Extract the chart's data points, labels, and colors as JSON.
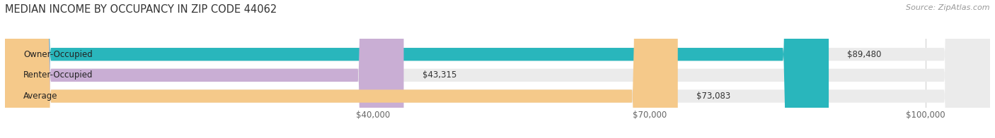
{
  "title": "MEDIAN INCOME BY OCCUPANCY IN ZIP CODE 44062",
  "source": "Source: ZipAtlas.com",
  "categories": [
    "Owner-Occupied",
    "Renter-Occupied",
    "Average"
  ],
  "values": [
    89480,
    43315,
    73083
  ],
  "bar_colors": [
    "#29b6bc",
    "#c9aed4",
    "#f5c98a"
  ],
  "bar_bg_color": "#ebebeb",
  "value_labels": [
    "$89,480",
    "$43,315",
    "$73,083"
  ],
  "tick_labels": [
    "$40,000",
    "$70,000",
    "$100,000"
  ],
  "tick_values": [
    40000,
    70000,
    100000
  ],
  "xmin": 0,
  "xmax": 107000,
  "title_fontsize": 10.5,
  "source_fontsize": 8,
  "bar_label_fontsize": 8.5,
  "tick_fontsize": 8.5,
  "background_color": "#ffffff"
}
